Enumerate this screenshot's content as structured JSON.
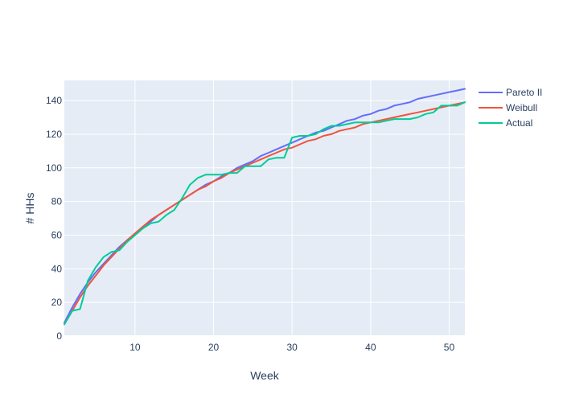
{
  "chart_data": {
    "type": "line",
    "title": "",
    "xlabel": "Week",
    "ylabel": "# HHs",
    "xlim": [
      1,
      52
    ],
    "ylim": [
      0,
      152
    ],
    "x_ticks": [
      10,
      20,
      30,
      40,
      50
    ],
    "y_ticks": [
      0,
      20,
      40,
      60,
      80,
      100,
      120,
      140
    ],
    "grid": true,
    "legend_position": "top-right",
    "series": [
      {
        "name": "Pareto II",
        "color": "#636efa",
        "x": [
          1,
          2,
          3,
          4,
          5,
          6,
          7,
          8,
          9,
          10,
          11,
          12,
          13,
          14,
          15,
          16,
          17,
          18,
          19,
          20,
          21,
          22,
          23,
          24,
          25,
          26,
          27,
          28,
          29,
          30,
          31,
          32,
          33,
          34,
          35,
          36,
          37,
          38,
          39,
          40,
          41,
          42,
          43,
          44,
          45,
          46,
          47,
          48,
          49,
          50,
          51,
          52
        ],
        "y": [
          8,
          17,
          25,
          32,
          38,
          43,
          48,
          53,
          57,
          61,
          65,
          68,
          72,
          75,
          78,
          81,
          84,
          87,
          90,
          92,
          95,
          97,
          100,
          102,
          104,
          107,
          109,
          111,
          113,
          115,
          117,
          119,
          121,
          122,
          124,
          126,
          128,
          129,
          131,
          132,
          134,
          135,
          137,
          138,
          139,
          141,
          142,
          143,
          144,
          145,
          146,
          147
        ]
      },
      {
        "name": "Weibull",
        "color": "#ef553b",
        "x": [
          1,
          2,
          3,
          4,
          5,
          6,
          7,
          8,
          9,
          10,
          11,
          12,
          13,
          14,
          15,
          16,
          17,
          18,
          19,
          20,
          21,
          22,
          23,
          24,
          25,
          26,
          27,
          28,
          29,
          30,
          31,
          32,
          33,
          34,
          35,
          36,
          37,
          38,
          39,
          40,
          41,
          42,
          43,
          44,
          45,
          46,
          47,
          48,
          49,
          50,
          51,
          52
        ],
        "y": [
          7,
          15,
          23,
          30,
          36,
          42,
          47,
          52,
          57,
          61,
          65,
          69,
          72,
          75,
          78,
          81,
          84,
          87,
          89,
          92,
          94,
          97,
          99,
          101,
          103,
          105,
          107,
          109,
          111,
          112,
          114,
          116,
          117,
          119,
          120,
          122,
          123,
          124,
          126,
          127,
          128,
          129,
          130,
          131,
          132,
          133,
          134,
          135,
          136,
          137,
          138,
          139
        ]
      },
      {
        "name": "Actual",
        "color": "#00cc96",
        "x": [
          1,
          2,
          3,
          4,
          5,
          6,
          7,
          8,
          9,
          10,
          11,
          12,
          13,
          14,
          15,
          16,
          17,
          18,
          19,
          20,
          21,
          22,
          23,
          24,
          25,
          26,
          27,
          28,
          29,
          30,
          31,
          32,
          33,
          34,
          35,
          36,
          37,
          38,
          39,
          40,
          41,
          42,
          43,
          44,
          45,
          46,
          47,
          48,
          49,
          50,
          51,
          52
        ],
        "y": [
          7,
          15,
          16,
          33,
          41,
          47,
          50,
          51,
          56,
          60,
          64,
          67,
          68,
          72,
          75,
          82,
          90,
          94,
          96,
          96,
          96,
          97,
          97,
          101,
          101,
          101,
          105,
          106,
          106,
          118,
          119,
          119,
          120,
          123,
          125,
          125,
          126,
          127,
          127,
          127,
          127,
          128,
          129,
          129,
          129,
          130,
          132,
          133,
          137,
          137,
          137,
          139
        ]
      }
    ]
  }
}
